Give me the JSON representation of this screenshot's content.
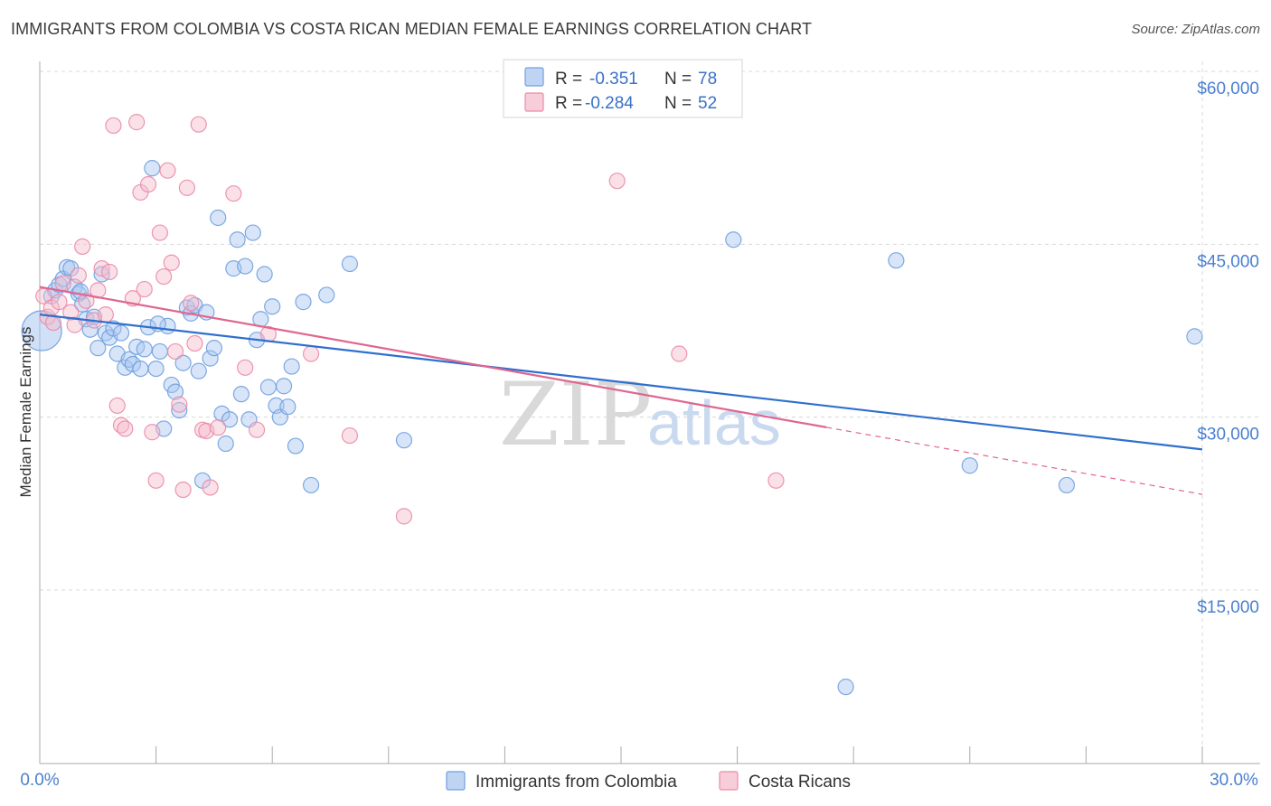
{
  "header": {
    "title": "IMMIGRANTS FROM COLOMBIA VS COSTA RICAN MEDIAN FEMALE EARNINGS CORRELATION CHART",
    "source": "Source: ZipAtlas.com"
  },
  "watermark": {
    "zip": "ZIP",
    "atlas": "atlas"
  },
  "colors": {
    "blue": "#6fa0e0",
    "blue_fill": "#a9c6ef",
    "blue_line": "#2f6fce",
    "pink": "#ec8aa9",
    "pink_fill": "#f5bccd",
    "pink_line": "#e0668f",
    "grid": "#d8d8d8",
    "tick_text": "#4a7fd1"
  },
  "legend": {
    "rows": [
      {
        "r_label": "R =",
        "r_value": "-0.351",
        "n_label": "N =",
        "n_value": "78"
      },
      {
        "r_label": "R =",
        "r_value": "-0.284",
        "n_label": "N =",
        "n_value": "52"
      }
    ]
  },
  "chart_data": {
    "type": "scatter",
    "title": "IMMIGRANTS FROM COLOMBIA VS COSTA RICAN MEDIAN FEMALE EARNINGS CORRELATION CHART",
    "xlabel": "",
    "ylabel": "Median Female Earnings",
    "xlim": [
      0,
      30
    ],
    "ylim": [
      0,
      62000
    ],
    "x_tick_labels": {
      "min": "0.0%",
      "max": "30.0%"
    },
    "y_ticks": [
      {
        "value": 15000,
        "label": "$15,000"
      },
      {
        "value": 30000,
        "label": "$30,000"
      },
      {
        "value": 45000,
        "label": "$45,000"
      },
      {
        "value": 60000,
        "label": "$60,000"
      }
    ],
    "grid": true,
    "legend_position": "top-center",
    "series": [
      {
        "name": "Immigrants from Colombia",
        "color": "#6fa0e0",
        "R": -0.351,
        "N": 78,
        "trend": {
          "x": [
            0,
            30
          ],
          "y": [
            38900,
            27200
          ],
          "dashed_from": null
        },
        "points": [
          [
            0.05,
            37500
          ],
          [
            0.3,
            40500
          ],
          [
            0.4,
            41000
          ],
          [
            0.5,
            41500
          ],
          [
            0.6,
            42000
          ],
          [
            0.7,
            43000
          ],
          [
            0.9,
            41300
          ],
          [
            1.0,
            40700
          ],
          [
            1.1,
            39800
          ],
          [
            1.2,
            38500
          ],
          [
            1.3,
            37600
          ],
          [
            1.4,
            38700
          ],
          [
            1.5,
            36000
          ],
          [
            1.6,
            42400
          ],
          [
            1.7,
            37300
          ],
          [
            1.8,
            36900
          ],
          [
            1.9,
            37700
          ],
          [
            2.0,
            35500
          ],
          [
            2.1,
            37300
          ],
          [
            2.2,
            34300
          ],
          [
            2.3,
            35000
          ],
          [
            2.4,
            34600
          ],
          [
            2.5,
            36100
          ],
          [
            2.6,
            34200
          ],
          [
            2.7,
            35900
          ],
          [
            2.8,
            37800
          ],
          [
            2.9,
            51600
          ],
          [
            3.0,
            34200
          ],
          [
            3.1,
            35700
          ],
          [
            3.2,
            29000
          ],
          [
            3.3,
            37900
          ],
          [
            3.4,
            32800
          ],
          [
            3.5,
            32200
          ],
          [
            3.6,
            30600
          ],
          [
            3.7,
            34700
          ],
          [
            3.8,
            39500
          ],
          [
            3.9,
            39000
          ],
          [
            4.0,
            39700
          ],
          [
            4.1,
            34000
          ],
          [
            4.2,
            24500
          ],
          [
            4.3,
            39100
          ],
          [
            4.4,
            35100
          ],
          [
            4.5,
            36000
          ],
          [
            4.6,
            47300
          ],
          [
            4.7,
            30300
          ],
          [
            4.8,
            27700
          ],
          [
            4.9,
            29800
          ],
          [
            5.0,
            42900
          ],
          [
            5.1,
            45400
          ],
          [
            5.2,
            32000
          ],
          [
            5.3,
            43100
          ],
          [
            5.4,
            29800
          ],
          [
            5.5,
            46000
          ],
          [
            5.6,
            36700
          ],
          [
            5.7,
            38500
          ],
          [
            5.8,
            42400
          ],
          [
            5.9,
            32600
          ],
          [
            6.0,
            39600
          ],
          [
            6.1,
            31000
          ],
          [
            6.2,
            30000
          ],
          [
            6.3,
            32700
          ],
          [
            6.4,
            30900
          ],
          [
            6.5,
            34400
          ],
          [
            6.6,
            27500
          ],
          [
            6.8,
            40000
          ],
          [
            7.0,
            24100
          ],
          [
            7.4,
            40600
          ],
          [
            8.0,
            43300
          ],
          [
            9.4,
            28000
          ],
          [
            17.9,
            45400
          ],
          [
            20.8,
            6600
          ],
          [
            22.1,
            43600
          ],
          [
            24.0,
            25800
          ],
          [
            26.5,
            24100
          ],
          [
            29.8,
            37000
          ],
          [
            0.8,
            42900
          ],
          [
            1.05,
            40900
          ],
          [
            3.05,
            38100
          ]
        ]
      },
      {
        "name": "Costa Ricans",
        "color": "#ec8aa9",
        "R": -0.284,
        "N": 52,
        "trend": {
          "x": [
            0,
            30
          ],
          "y": [
            41300,
            23300
          ],
          "dashed_from": 20.3
        },
        "points": [
          [
            0.1,
            40500
          ],
          [
            0.2,
            38700
          ],
          [
            0.3,
            39500
          ],
          [
            0.5,
            40000
          ],
          [
            0.6,
            41600
          ],
          [
            0.8,
            39100
          ],
          [
            0.9,
            38000
          ],
          [
            1.0,
            42300
          ],
          [
            1.1,
            44800
          ],
          [
            1.2,
            40100
          ],
          [
            1.4,
            38400
          ],
          [
            1.5,
            41000
          ],
          [
            1.6,
            42900
          ],
          [
            1.7,
            38900
          ],
          [
            1.8,
            42600
          ],
          [
            1.9,
            55300
          ],
          [
            2.0,
            31000
          ],
          [
            2.1,
            29300
          ],
          [
            2.2,
            29000
          ],
          [
            2.4,
            40300
          ],
          [
            2.5,
            55600
          ],
          [
            2.6,
            49500
          ],
          [
            2.7,
            41100
          ],
          [
            2.8,
            50200
          ],
          [
            2.9,
            28700
          ],
          [
            3.0,
            24500
          ],
          [
            3.1,
            46000
          ],
          [
            3.2,
            42200
          ],
          [
            3.3,
            51400
          ],
          [
            3.4,
            43400
          ],
          [
            3.5,
            35700
          ],
          [
            3.6,
            31100
          ],
          [
            3.7,
            23700
          ],
          [
            3.8,
            49900
          ],
          [
            3.9,
            39900
          ],
          [
            4.0,
            36400
          ],
          [
            4.1,
            55400
          ],
          [
            4.2,
            28900
          ],
          [
            4.3,
            28800
          ],
          [
            4.4,
            23900
          ],
          [
            4.6,
            29100
          ],
          [
            5.0,
            49400
          ],
          [
            5.3,
            34300
          ],
          [
            5.6,
            28900
          ],
          [
            5.9,
            37200
          ],
          [
            7.0,
            35500
          ],
          [
            8.0,
            28400
          ],
          [
            9.4,
            21400
          ],
          [
            14.9,
            50500
          ],
          [
            16.5,
            35500
          ],
          [
            19.0,
            24500
          ],
          [
            0.35,
            38200
          ]
        ]
      }
    ]
  },
  "bottom_legend": {
    "items": [
      {
        "label": "Immigrants from Colombia"
      },
      {
        "label": "Costa Ricans"
      }
    ]
  }
}
